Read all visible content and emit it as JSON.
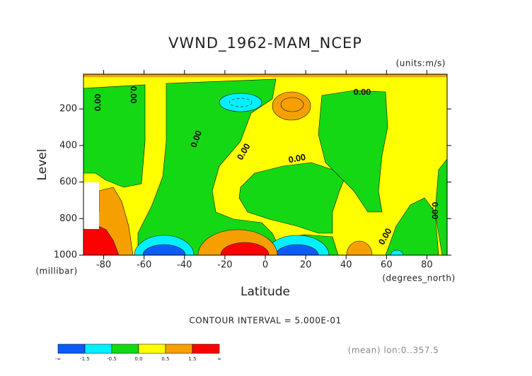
{
  "chart_data": {
    "type": "contour",
    "title": "VWND_1962-MAM_NCEP",
    "units": "(units:m/s)",
    "y_label": "Level",
    "y_units": "(millibar)",
    "x_label": "Latitude",
    "x_units": "(degrees_north)",
    "xlim": [
      -90,
      90
    ],
    "xticks": [
      -80,
      -60,
      -40,
      -20,
      0,
      20,
      40,
      60,
      80
    ],
    "ylim": [
      1000,
      10
    ],
    "yticks": [
      200,
      400,
      600,
      800,
      1000
    ],
    "contour_labels": [
      "0.00",
      "0.00",
      "0.00",
      "0.00",
      "0.00",
      "0.00",
      "0.00",
      "0.00"
    ],
    "contour_interval": "CONTOUR INTERVAL = 5.000E-01",
    "footnote": "(mean) lon:0..357.5",
    "colorbar": {
      "colors": [
        "#0a5cf5",
        "#00f0ff",
        "#14d814",
        "#ffff00",
        "#f5a000",
        "#ff0000"
      ],
      "labels": [
        "-∞",
        "-1.5",
        "-0.5",
        "0.0",
        "0.5",
        "1.5",
        "∞"
      ]
    }
  }
}
